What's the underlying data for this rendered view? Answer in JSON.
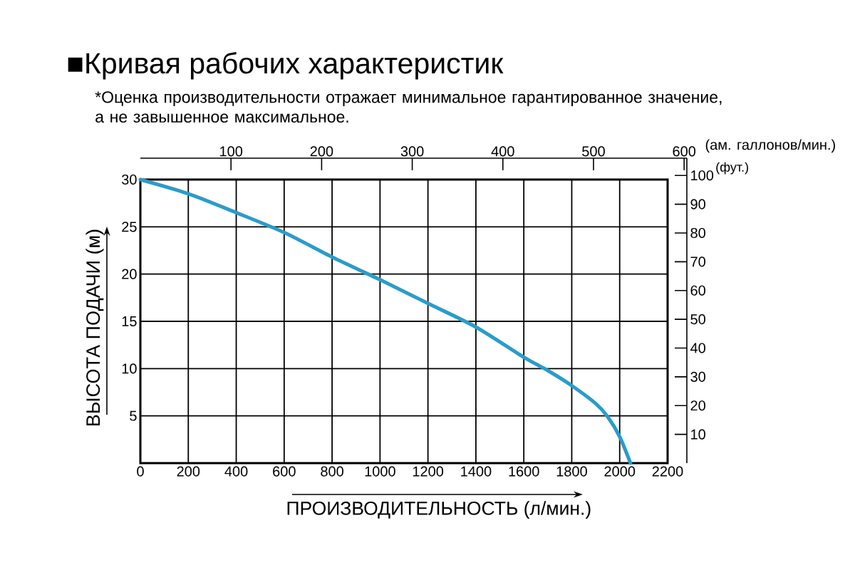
{
  "chart_data": {
    "type": "line",
    "title": "■Кривая рабочих характеристик",
    "subtitle": "*Оценка производительности отражает минимальное гарантированное значение, а не завышенное максимальное.",
    "xlabel": "ПРОИЗВОДИТЕЛЬНОСТЬ (л/мин.)",
    "ylabel": "ВЫСОТА ПОДАЧИ (м)",
    "x2label": "(ам. галлонов/мин.)",
    "y2label": "(фут.)",
    "x": [
      0,
      200,
      400,
      600,
      800,
      1000,
      1200,
      1400,
      1600,
      1700,
      1800,
      1900,
      1950,
      2000,
      2045
    ],
    "series": [
      {
        "color": "#2b9cc8",
        "values": [
          30,
          28.5,
          26.5,
          24.4,
          21.8,
          19.4,
          16.9,
          14.4,
          11.2,
          9.8,
          8.2,
          6.3,
          4.9,
          2.8,
          0
        ]
      }
    ],
    "xlim": [
      0,
      2200
    ],
    "xticks": [
      0,
      200,
      400,
      600,
      800,
      1000,
      1200,
      1400,
      1600,
      1800,
      2000,
      2200
    ],
    "ylim": [
      0,
      30
    ],
    "yticks": [
      5,
      10,
      15,
      20,
      25,
      30
    ],
    "x2lim": [
      0,
      603
    ],
    "x2ticks": [
      100,
      200,
      300,
      400,
      500,
      600
    ],
    "y2lim": [
      0,
      106
    ],
    "y2ticks": [
      10,
      20,
      30,
      40,
      50,
      60,
      70,
      80,
      90,
      100
    ],
    "grid": true,
    "marker": "none",
    "line_style": "solid"
  }
}
